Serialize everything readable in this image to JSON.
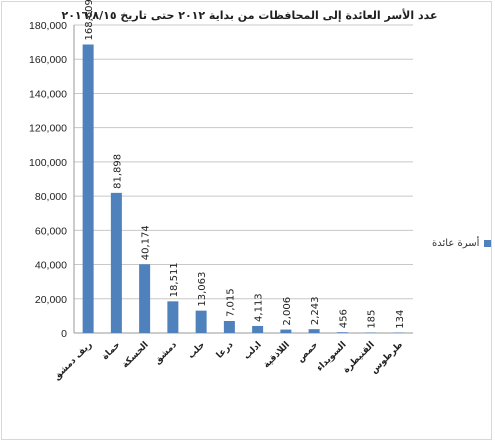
{
  "chart_data": {
    "type": "bar",
    "title": "عدد الأسر العائدة إلى المحافظات من بداية ٢٠١٢ حتى تاريخ ٢٠١٦/٨/١٥",
    "categories": [
      "ريف دمشق",
      "حماة",
      "الحسكة",
      "دمشق",
      "حلب",
      "درعا",
      "ادلب",
      "اللاذقية",
      "حمص",
      "السويداء",
      "القنيطرة",
      "طرطوس"
    ],
    "series": [
      {
        "name": "أسرة عائدة",
        "values": [
          168609,
          81898,
          40174,
          18511,
          13063,
          7015,
          4113,
          2006,
          2243,
          456,
          185,
          134
        ],
        "value_labels": [
          "168,609",
          "81,898",
          "40,174",
          "18,511",
          "13,063",
          "7,015",
          "4,113",
          "2,006",
          "2,243",
          "456",
          "185",
          "134"
        ]
      }
    ],
    "ylim": [
      0,
      180000
    ],
    "yticks": [
      0,
      20000,
      40000,
      60000,
      80000,
      100000,
      120000,
      140000,
      160000,
      180000
    ],
    "ytick_labels": [
      "0",
      "20,000",
      "40,000",
      "60,000",
      "80,000",
      "100,000",
      "120,000",
      "140,000",
      "160,000",
      "180,000"
    ],
    "grid": true,
    "legend_position": "right",
    "bar_color": "#4f81bd",
    "grid_color": "#c8c8c8"
  }
}
